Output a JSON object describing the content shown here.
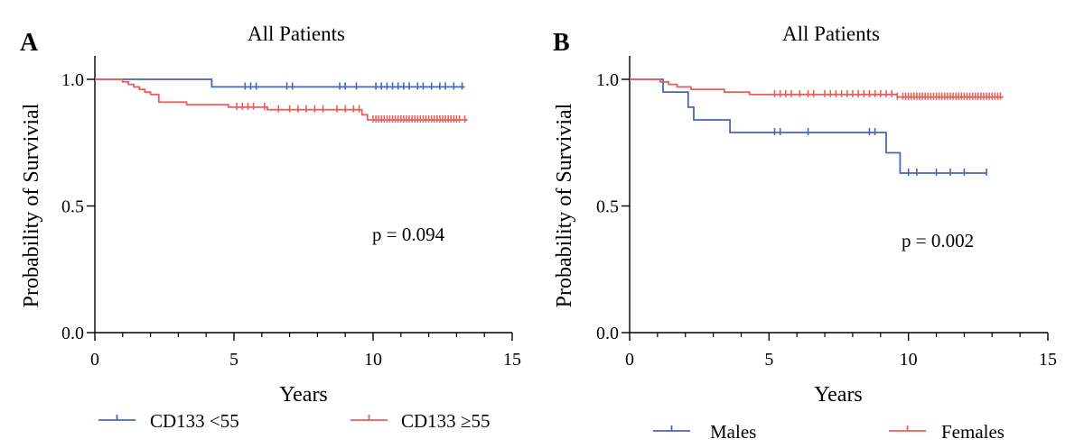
{
  "chart_data": [
    {
      "type": "line",
      "panel": "A",
      "title": "All Patients",
      "xlabel": "Years",
      "ylabel": "Probability of Survivial",
      "xlim": [
        0,
        15
      ],
      "ylim": [
        0,
        1
      ],
      "xticks": [
        0,
        5,
        10,
        15
      ],
      "yticks": [
        0.0,
        0.5,
        1.0
      ],
      "ytick_labels": [
        "0.0",
        "0.5",
        "1.0"
      ],
      "annotation": "p = 0.094",
      "series": [
        {
          "name": "CD133 <55",
          "color": "#4a66b8",
          "steps": [
            [
              0,
              1.0
            ],
            [
              4.2,
              0.97
            ],
            [
              13.3,
              0.97
            ]
          ],
          "censors": [
            5.4,
            5.6,
            5.8,
            6.9,
            7.1,
            8.8,
            9.0,
            9.4,
            10.1,
            10.3,
            10.5,
            10.7,
            10.9,
            11.1,
            11.3,
            11.6,
            11.8,
            12.1,
            12.4,
            12.6,
            12.9,
            13.2
          ]
        },
        {
          "name": "CD133 ≥55",
          "color": "#e8605c",
          "steps": [
            [
              0,
              1.0
            ],
            [
              1.0,
              0.99
            ],
            [
              1.2,
              0.98
            ],
            [
              1.4,
              0.97
            ],
            [
              1.6,
              0.96
            ],
            [
              1.8,
              0.95
            ],
            [
              2.0,
              0.94
            ],
            [
              2.3,
              0.91
            ],
            [
              3.3,
              0.9
            ],
            [
              4.8,
              0.89
            ],
            [
              6.2,
              0.88
            ],
            [
              9.6,
              0.86
            ],
            [
              9.8,
              0.84
            ],
            [
              13.4,
              0.84
            ]
          ],
          "censors": [
            5.1,
            5.3,
            5.5,
            5.7,
            6.1,
            6.6,
            7.0,
            7.3,
            7.6,
            7.9,
            8.2,
            8.7,
            9.0,
            9.3,
            9.5,
            10.0,
            10.1,
            10.2,
            10.3,
            10.4,
            10.5,
            10.6,
            10.7,
            10.8,
            10.9,
            11.0,
            11.1,
            11.2,
            11.3,
            11.4,
            11.5,
            11.6,
            11.7,
            11.8,
            11.9,
            12.0,
            12.1,
            12.2,
            12.3,
            12.4,
            12.5,
            12.6,
            12.7,
            12.8,
            12.9,
            13.0,
            13.1,
            13.3
          ]
        }
      ],
      "legend": [
        "CD133 <55",
        "CD133 ≥55"
      ]
    },
    {
      "type": "line",
      "panel": "B",
      "title": "All Patients",
      "xlabel": "Years",
      "ylabel": "Probability of Survivial",
      "xlim": [
        0,
        15
      ],
      "ylim": [
        0,
        1
      ],
      "xticks": [
        0,
        5,
        10,
        15
      ],
      "yticks": [
        0.0,
        0.5,
        1.0
      ],
      "ytick_labels": [
        "0.0",
        "0.5",
        "1.0"
      ],
      "annotation": "p = 0.002",
      "series": [
        {
          "name": "Males",
          "color": "#4a66b8",
          "steps": [
            [
              0,
              1.0
            ],
            [
              1.2,
              0.95
            ],
            [
              2.1,
              0.89
            ],
            [
              2.3,
              0.84
            ],
            [
              3.6,
              0.79
            ],
            [
              9.2,
              0.71
            ],
            [
              9.7,
              0.63
            ],
            [
              12.8,
              0.63
            ]
          ],
          "censors": [
            5.2,
            5.4,
            6.4,
            8.6,
            8.8,
            10.0,
            10.3,
            11.0,
            11.5,
            12.0,
            12.8
          ]
        },
        {
          "name": "Females",
          "color": "#e8605c",
          "steps": [
            [
              0,
              1.0
            ],
            [
              1.1,
              0.99
            ],
            [
              1.4,
              0.98
            ],
            [
              1.7,
              0.97
            ],
            [
              2.2,
              0.96
            ],
            [
              3.4,
              0.95
            ],
            [
              4.3,
              0.94
            ],
            [
              9.6,
              0.93
            ],
            [
              13.4,
              0.93
            ]
          ],
          "censors": [
            5.2,
            5.4,
            5.6,
            5.8,
            6.1,
            6.4,
            6.6,
            7.0,
            7.2,
            7.4,
            7.6,
            7.8,
            8.0,
            8.2,
            8.4,
            8.6,
            8.8,
            9.0,
            9.2,
            9.4,
            9.6,
            9.8,
            9.9,
            10.0,
            10.1,
            10.2,
            10.3,
            10.4,
            10.5,
            10.6,
            10.7,
            10.8,
            10.9,
            11.0,
            11.1,
            11.2,
            11.3,
            11.4,
            11.5,
            11.6,
            11.7,
            11.8,
            11.9,
            12.0,
            12.1,
            12.2,
            12.3,
            12.4,
            12.5,
            12.6,
            12.7,
            12.8,
            12.9,
            13.0,
            13.1,
            13.2,
            13.3
          ]
        }
      ],
      "legend": [
        "Males",
        "Females"
      ]
    }
  ]
}
